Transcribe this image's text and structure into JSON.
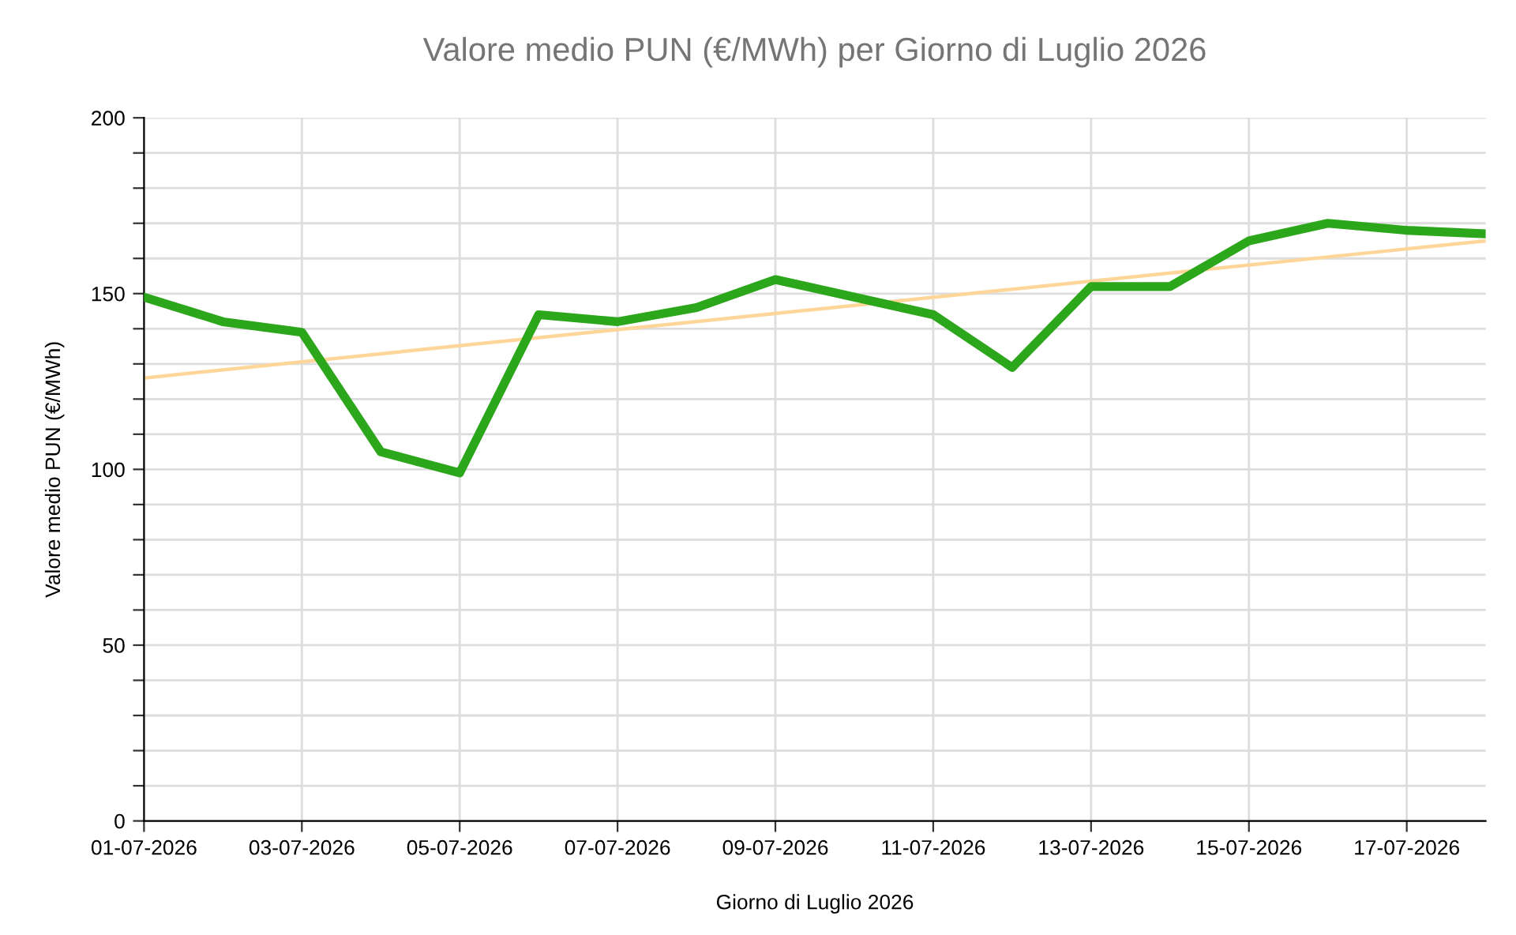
{
  "chart_data": {
    "type": "line",
    "title": "Valore medio PUN (€/MWh) per Giorno di Luglio 2026",
    "xlabel": "Giorno di Luglio 2026",
    "ylabel": "Valore medio PUN (€/MWh)",
    "x": [
      "2026-07-01",
      "2026-07-02",
      "2026-07-03",
      "2026-07-04",
      "2026-07-05",
      "2026-07-06",
      "2026-07-07",
      "2026-07-08",
      "2026-07-09",
      "2026-07-10",
      "2026-07-11",
      "2026-07-12",
      "2026-07-13",
      "2026-07-14",
      "2026-07-15",
      "2026-07-16",
      "2026-07-17",
      "2026-07-18"
    ],
    "series": [
      {
        "color": "#2ca61a",
        "values": [
          149,
          142,
          139,
          105,
          99,
          144,
          142,
          146,
          154,
          149,
          144,
          129,
          152,
          152,
          165,
          170,
          168,
          167
        ]
      },
      {
        "type": "line",
        "color": "#ffd699",
        "x": [
          "2026-07-01",
          "2026-07-18"
        ],
        "values": [
          126,
          165
        ]
      }
    ],
    "xlim": [
      "2026-07-01",
      "2026-07-18"
    ],
    "xticks": [
      {
        "value": "2026-07-01",
        "label": "01-07-2026"
      },
      {
        "value": "2026-07-03",
        "label": "03-07-2026"
      },
      {
        "value": "2026-07-05",
        "label": "05-07-2026"
      },
      {
        "value": "2026-07-07",
        "label": "07-07-2026"
      },
      {
        "value": "2026-07-09",
        "label": "09-07-2026"
      },
      {
        "value": "2026-07-11",
        "label": "11-07-2026"
      },
      {
        "value": "2026-07-13",
        "label": "13-07-2026"
      },
      {
        "value": "2026-07-15",
        "label": "15-07-2026"
      },
      {
        "value": "2026-07-17",
        "label": "17-07-2026"
      }
    ],
    "ylim": [
      0,
      200
    ],
    "yticks": [
      0,
      {
        "value": 10,
        "label": null
      },
      {
        "value": 20,
        "label": null
      },
      {
        "value": 30,
        "label": null
      },
      {
        "value": 40,
        "label": null
      },
      50,
      {
        "value": 60,
        "label": null
      },
      {
        "value": 70,
        "label": null
      },
      {
        "value": 80,
        "label": null
      },
      {
        "value": 90,
        "label": null
      },
      100,
      {
        "value": 110,
        "label": null
      },
      {
        "value": 120,
        "label": null
      },
      {
        "value": 130,
        "label": null
      },
      {
        "value": 140,
        "label": null
      },
      150,
      {
        "value": 160,
        "label": null
      },
      {
        "value": 170,
        "label": null
      },
      {
        "value": 180,
        "label": null
      },
      {
        "value": 190,
        "label": null
      },
      200
    ],
    "grid": true,
    "legend": false
  }
}
